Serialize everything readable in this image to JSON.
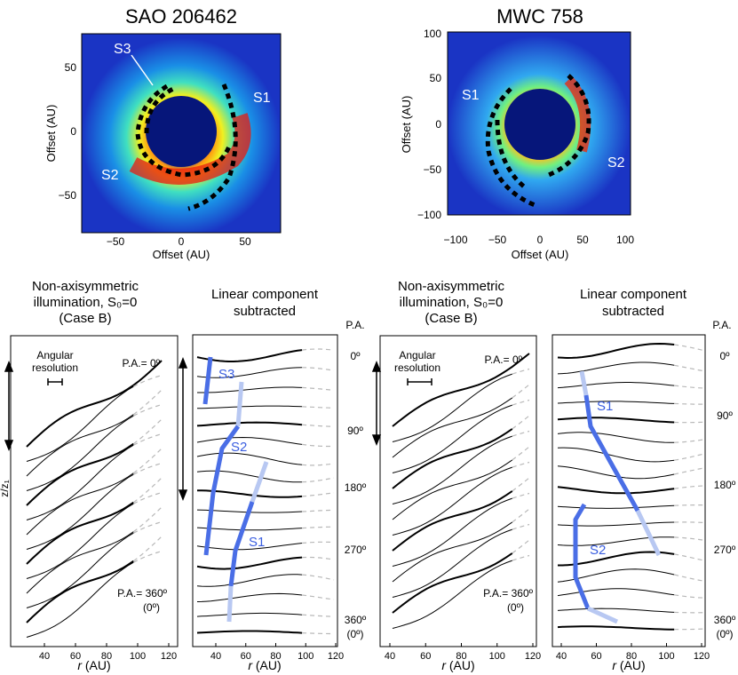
{
  "top_panels": [
    {
      "title": "SAO 206462",
      "xlabel": "Offset (AU)",
      "ylabel": "Offset (AU)",
      "xticks": [
        "−50",
        "0",
        "50"
      ],
      "yticks": [
        "50",
        "0",
        "−50"
      ],
      "labels": [
        "S3",
        "S1",
        "S2"
      ]
    },
    {
      "title": "MWC 758",
      "xlabel": "Offset (AU)",
      "ylabel": "Offset (AU)",
      "xticks": [
        "−100",
        "−50",
        "0",
        "50",
        "100"
      ],
      "yticks": [
        "100",
        "50",
        "0",
        "−50",
        "−100"
      ],
      "labels": [
        "S1",
        "S2"
      ]
    }
  ],
  "bottom_panels": [
    {
      "title_lines": [
        "Non-axisymmetric",
        "illumination, S₀=0",
        "(Case B)"
      ],
      "res_lines": [
        "Angular",
        "resolution"
      ],
      "pa_top": "P.A.= 0º",
      "pa_bottom_lines": [
        "P.A.= 360º",
        "(0º)"
      ],
      "xticks": [
        "40",
        "60",
        "80",
        "100",
        "120"
      ],
      "xlabel_r": "r",
      "xlabel_unit": " (AU)",
      "ylabel": "z/z₁"
    },
    {
      "title_lines": [
        "Linear component",
        "subtracted"
      ],
      "pa_header": "P.A.",
      "pa_labels": [
        "0º",
        "90º",
        "180º",
        "270º",
        "360º",
        "(0º)"
      ],
      "track_labels": [
        "S3",
        "S2",
        "S1"
      ],
      "xticks": [
        "40",
        "60",
        "80",
        "100",
        "120"
      ],
      "xlabel_r": "r",
      "xlabel_unit": " (AU)"
    },
    {
      "title_lines": [
        "Non-axisymmetric",
        "illumination, S₀=0",
        "(Case B)"
      ],
      "res_lines": [
        "Angular",
        "resolution"
      ],
      "pa_top": "P.A.= 0º",
      "pa_bottom_lines": [
        "P.A.= 360º",
        "(0º)"
      ],
      "xticks": [
        "40",
        "60",
        "80",
        "100",
        "120"
      ],
      "xlabel_r": "r",
      "xlabel_unit": " (AU)"
    },
    {
      "title_lines": [
        "Linear component",
        "subtracted"
      ],
      "pa_header": "P.A.",
      "pa_labels": [
        "0º",
        "90º",
        "180º",
        "270º",
        "360º",
        "(0º)"
      ],
      "track_labels": [
        "S1",
        "S2"
      ],
      "xticks": [
        "40",
        "60",
        "80",
        "100",
        "120"
      ],
      "xlabel_r": "r",
      "xlabel_unit": " (AU)"
    }
  ],
  "colors": {
    "line": "#000000",
    "dash": "#b8b8b8",
    "track": "#4a6ee6",
    "track_light": "#b8c8f2",
    "inner_disk": "#06167a",
    "background_map": "#1a34c4"
  }
}
